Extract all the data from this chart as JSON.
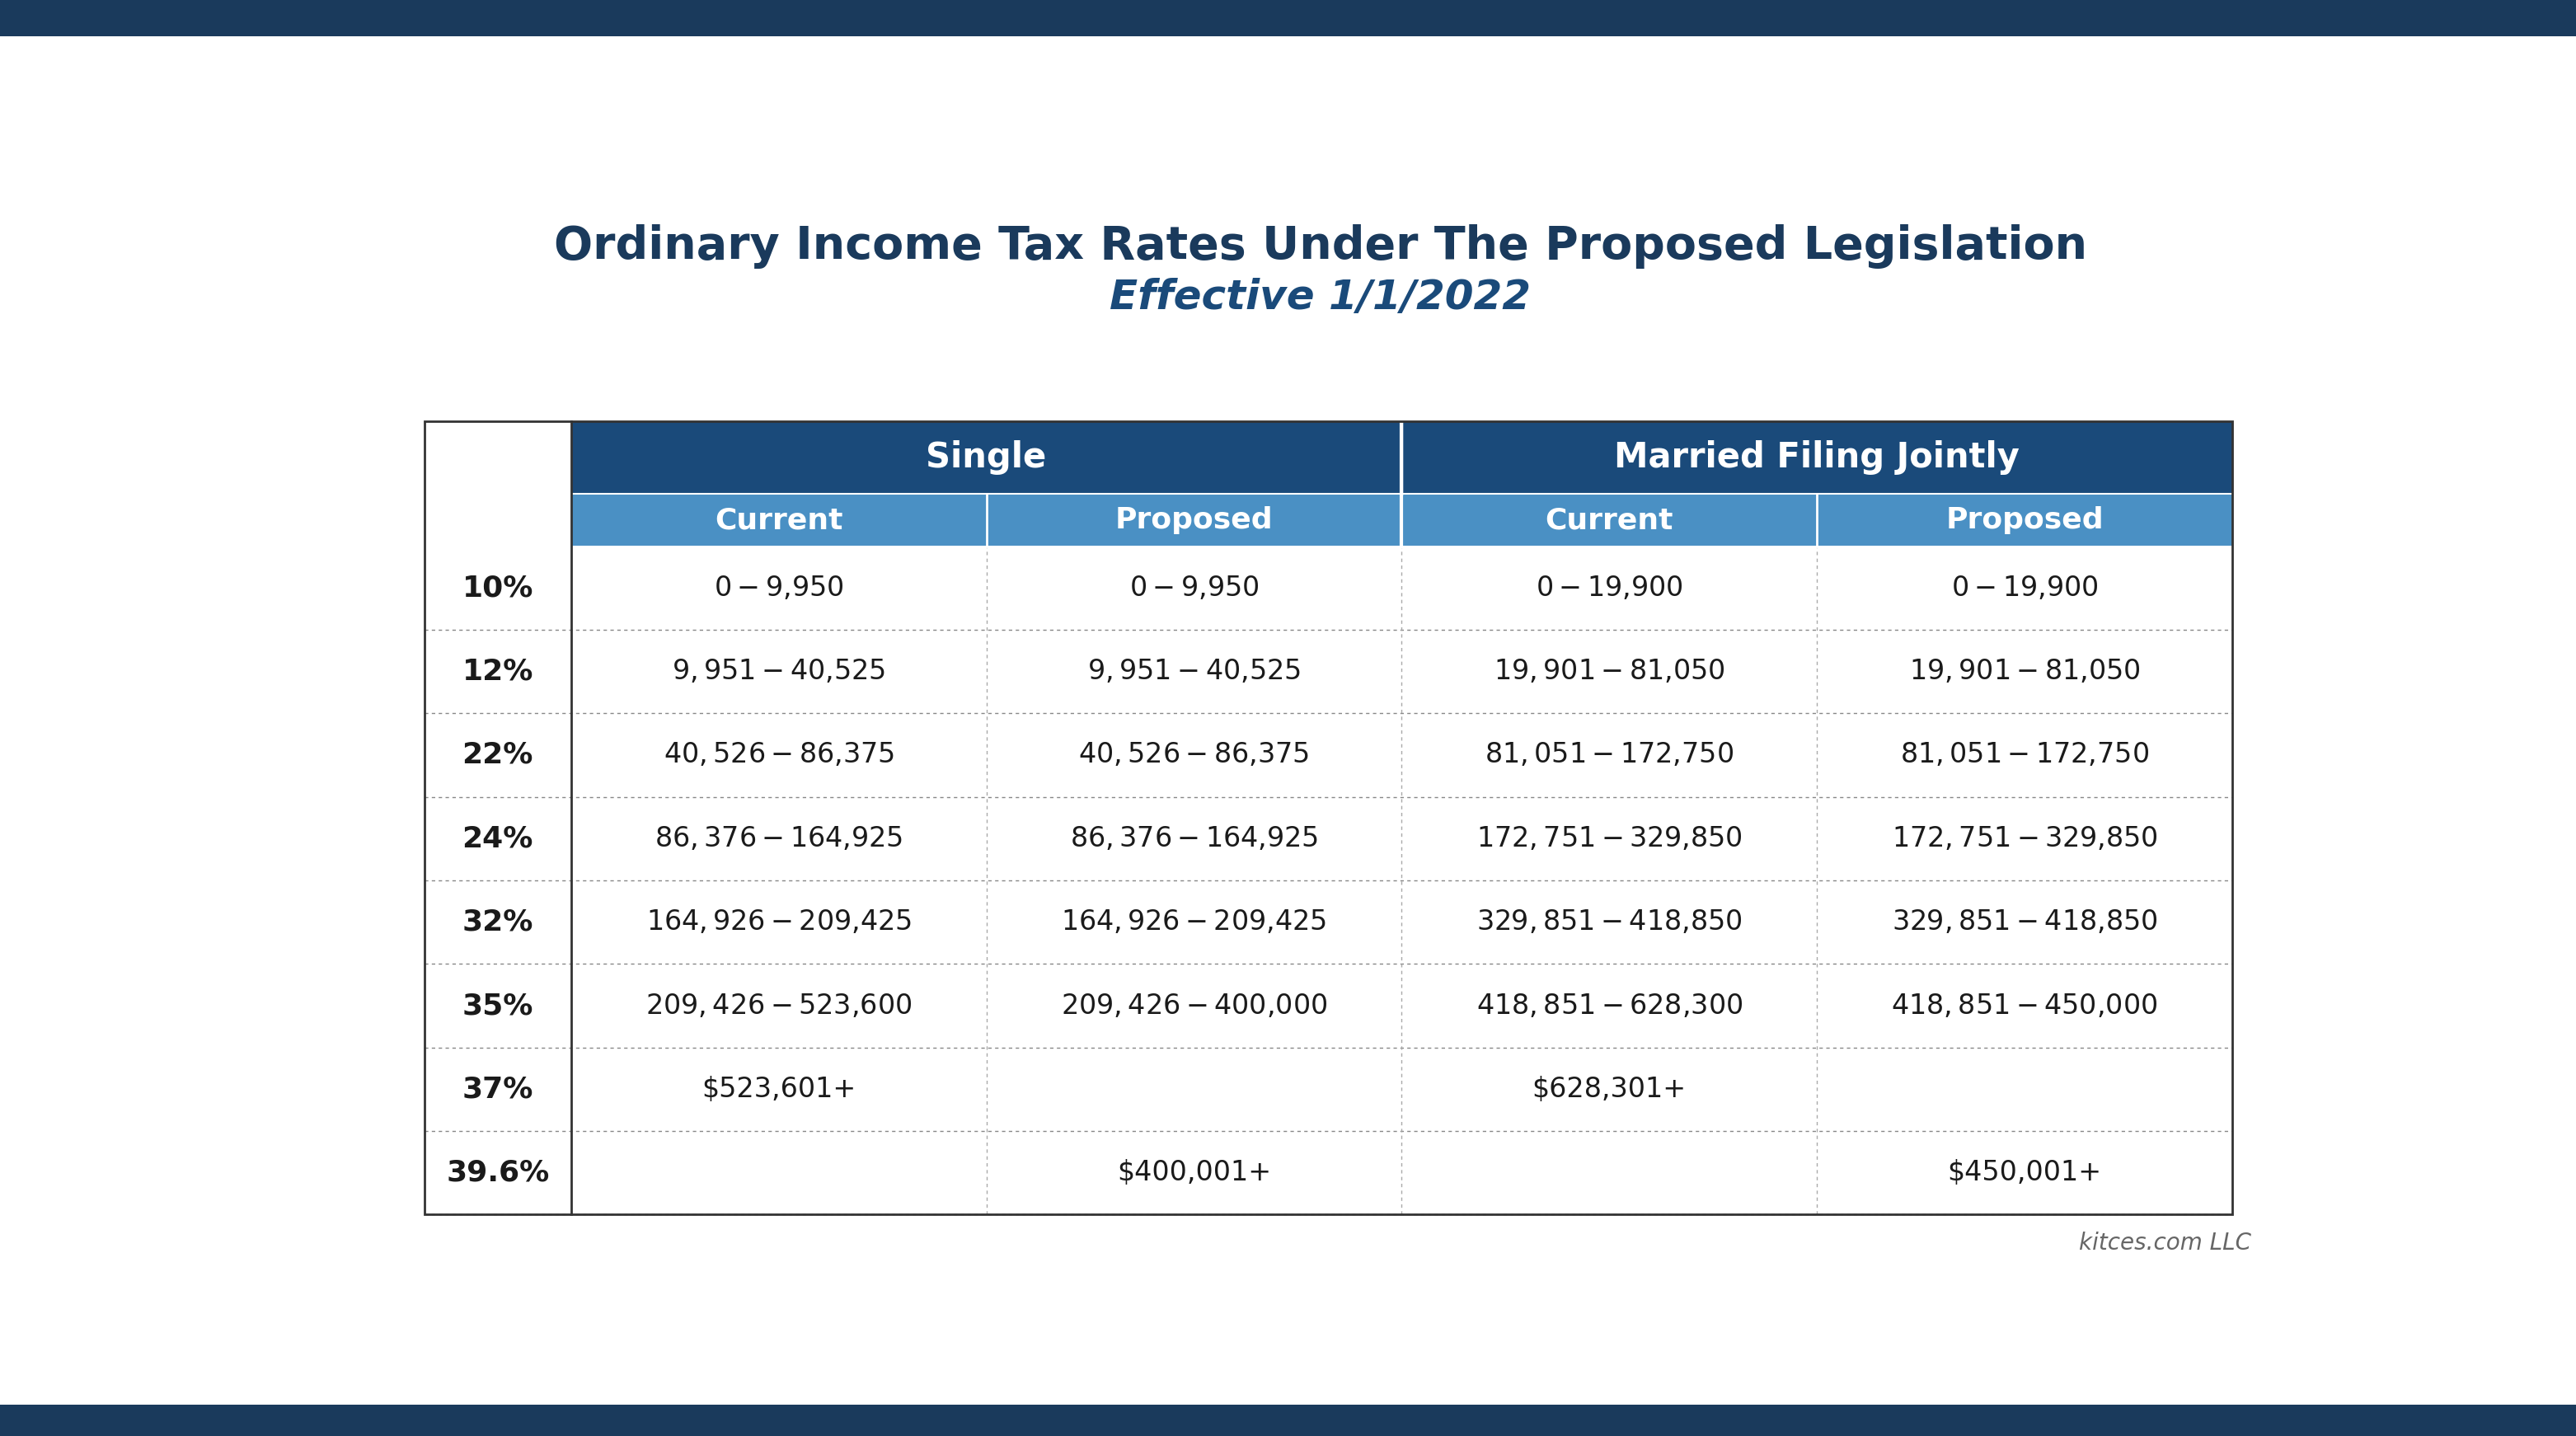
{
  "title": "Ordinary Income Tax Rates Under The Proposed Legislation",
  "subtitle": "Effective 1/1/2022",
  "footer": "kitces.com LLC",
  "bg_color": "#ffffff",
  "border_top_color": "#1a3a5c",
  "header1_color": "#1a4a7a",
  "header2_color": "#4a90c4",
  "title_color": "#1a3a5c",
  "subtitle_color": "#1a4a7a",
  "col_groups": [
    "Single",
    "Married Filing Jointly"
  ],
  "col_subheaders": [
    "Current",
    "Proposed",
    "Current",
    "Proposed"
  ],
  "row_labels": [
    "10%",
    "12%",
    "22%",
    "24%",
    "32%",
    "35%",
    "37%",
    "39.6%"
  ],
  "table_data": [
    [
      "$0 - $9,950",
      "$0 - $9,950",
      "$0 - $19,900",
      "$0 - $19,900"
    ],
    [
      "$9,951 - $40,525",
      "$9,951 - $40,525",
      "$19,901 - $81,050",
      "$19,901 - $81,050"
    ],
    [
      "$40,526 - $86,375",
      "$40,526 - $86,375",
      "$81,051 - $172,750",
      "$81,051 - $172,750"
    ],
    [
      "$86,376 - $164,925",
      "$86,376 - $164,925",
      "$172,751 - $329,850",
      "$172,751 - $329,850"
    ],
    [
      "$164,926 - $209,425",
      "$164,926 - $209,425",
      "$329,851 - $418,850",
      "$329,851 - $418,850"
    ],
    [
      "$209,426 - $523,600",
      "$209,426 - $400,000",
      "$418,851 - $628,300",
      "$418,851 - $450,000"
    ],
    [
      "$523,601+",
      "",
      "$628,301+",
      ""
    ],
    [
      "",
      "$400,001+",
      "",
      "$450,001+"
    ]
  ]
}
